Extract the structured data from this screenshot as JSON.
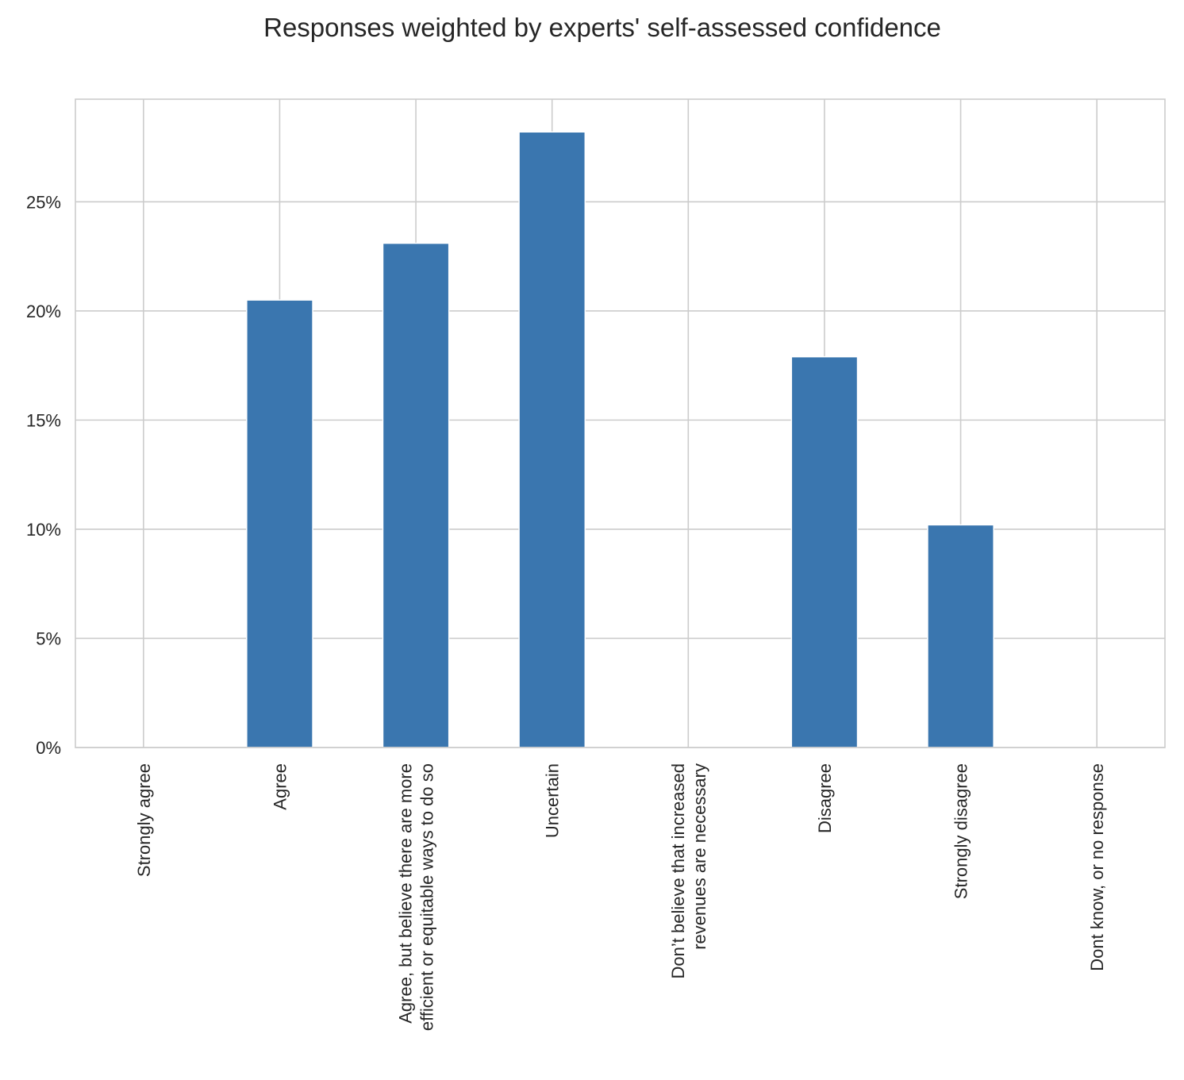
{
  "chart_data": {
    "type": "bar",
    "title": "Responses weighted by experts' self-assessed confidence",
    "xlabel": "",
    "ylabel": "",
    "categories": [
      [
        "Strongly agree"
      ],
      [
        "Agree"
      ],
      [
        "Agree, but believe there are more",
        "efficient or equitable ways to do so"
      ],
      [
        "Uncertain"
      ],
      [
        "Don’t believe that increased",
        "revenues are necessary"
      ],
      [
        "Disagree"
      ],
      [
        "Strongly disagree"
      ],
      [
        "Dont know, or no response"
      ]
    ],
    "values": [
      0,
      20.5,
      23.1,
      28.2,
      0,
      17.9,
      10.2,
      0
    ],
    "ylim": [
      0,
      29.7
    ],
    "yticks": [
      0,
      5,
      10,
      15,
      20,
      25
    ],
    "ytick_labels": [
      "0%",
      "5%",
      "10%",
      "15%",
      "20%",
      "25%"
    ],
    "grid": true,
    "legend": "none",
    "colors": {
      "bar": "#3a76af",
      "grid": "#cccccc",
      "text": "#262626"
    }
  }
}
